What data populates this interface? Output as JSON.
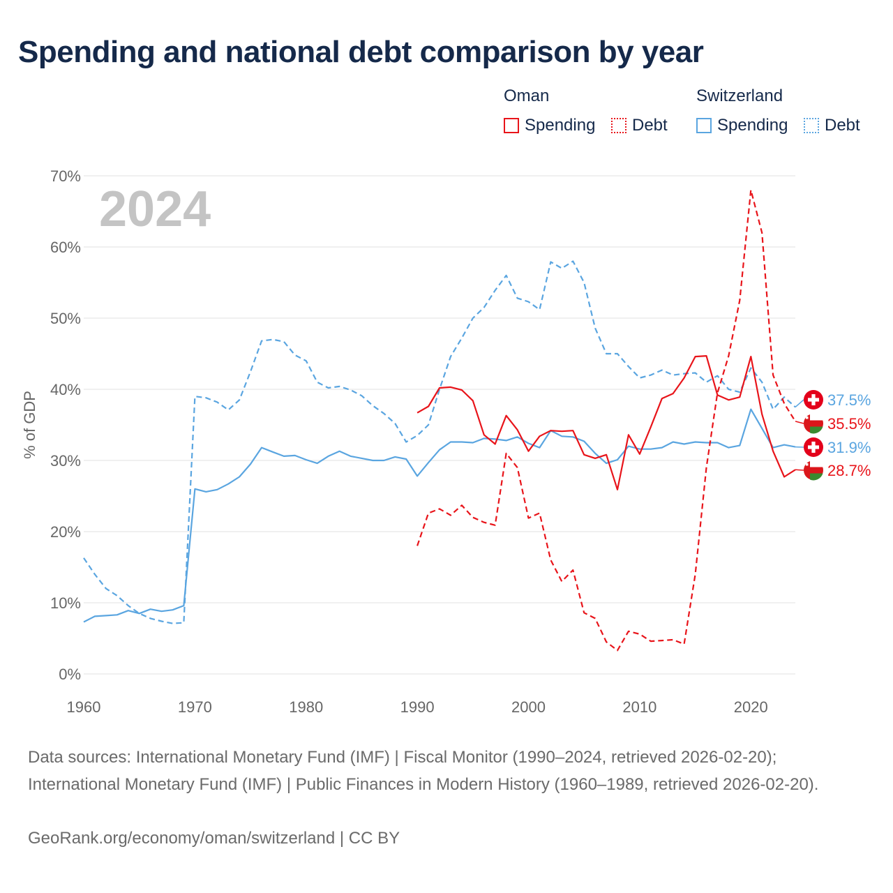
{
  "title": "Spending and national debt comparison by year",
  "legend": {
    "groups": [
      {
        "name": "Oman",
        "spending_label": "Spending",
        "debt_label": "Debt"
      },
      {
        "name": "Switzerland",
        "spending_label": "Spending",
        "debt_label": "Debt"
      }
    ]
  },
  "colors": {
    "oman": "#e8141a",
    "switzerland": "#5aa5e0",
    "year_watermark": "#c4c4c4",
    "axis_text": "#666666",
    "grid": "#e6e6e6"
  },
  "chart_data": {
    "type": "line",
    "title": "Spending and national debt comparison by year",
    "ylabel": "% of GDP",
    "xlabel": "",
    "xlim": [
      1960,
      2024
    ],
    "ylim": [
      0,
      70
    ],
    "x_ticks": [
      1960,
      1970,
      1980,
      1990,
      2000,
      2010,
      2020
    ],
    "y_ticks": [
      0,
      10,
      20,
      30,
      40,
      50,
      60,
      70
    ],
    "y_tick_labels": [
      "0%",
      "10%",
      "20%",
      "30%",
      "40%",
      "50%",
      "60%",
      "70%"
    ],
    "year_watermark": "2024",
    "series": [
      {
        "name": "Switzerland Debt",
        "country": "switzerland",
        "style": "dashed",
        "start": 1960,
        "values": [
          16.3,
          14.0,
          12.0,
          11.0,
          9.6,
          8.5,
          7.8,
          7.4,
          7.1,
          7.2,
          39.0,
          38.8,
          38.2,
          37.1,
          38.5,
          42.5,
          46.8,
          47.0,
          46.7,
          44.8,
          44.0,
          41.0,
          40.2,
          40.4,
          39.9,
          39.1,
          37.7,
          36.6,
          35.2,
          32.6,
          33.5,
          35.0,
          40.0,
          44.6,
          47.2,
          50.0,
          51.5,
          53.9,
          56.0,
          52.8,
          52.3,
          51.2,
          57.9,
          57.0,
          58.0,
          55.0,
          48.6,
          45.0,
          45.0,
          43.2,
          41.6,
          42.0,
          42.7,
          42.0,
          42.2,
          42.3,
          41.0,
          41.9,
          40.0,
          39.6,
          43.0,
          41.0,
          37.2,
          38.9,
          37.5
        ]
      },
      {
        "name": "Switzerland Spending",
        "country": "switzerland",
        "style": "solid",
        "start": 1960,
        "values": [
          7.3,
          8.1,
          8.2,
          8.3,
          8.9,
          8.5,
          9.1,
          8.8,
          9.0,
          9.6,
          26.0,
          25.6,
          25.9,
          26.7,
          27.7,
          29.5,
          31.8,
          31.2,
          30.6,
          30.7,
          30.1,
          29.6,
          30.6,
          31.3,
          30.6,
          30.3,
          30.0,
          30.0,
          30.5,
          30.2,
          27.8,
          29.7,
          31.5,
          32.6,
          32.6,
          32.5,
          33.1,
          33.0,
          32.8,
          33.3,
          32.4,
          31.8,
          34.2,
          33.4,
          33.3,
          32.7,
          31.0,
          29.6,
          30.1,
          32.0,
          31.6,
          31.6,
          31.8,
          32.6,
          32.3,
          32.6,
          32.5,
          32.5,
          31.8,
          32.1,
          37.2,
          34.5,
          31.8,
          32.2,
          31.9
        ]
      },
      {
        "name": "Oman Debt",
        "country": "oman",
        "style": "dashed",
        "start": 1990,
        "values": [
          18.0,
          22.6,
          23.2,
          22.3,
          23.7,
          22.0,
          21.3,
          20.9,
          31.0,
          29.0,
          21.9,
          22.6,
          16.0,
          13.0,
          14.6,
          8.6,
          7.8,
          4.5,
          3.3,
          6.0,
          5.6,
          4.6,
          4.7,
          4.8,
          4.2,
          14.0,
          29.0,
          39.5,
          44.7,
          52.5,
          68.0,
          62.0,
          42.0,
          38.0,
          35.5
        ]
      },
      {
        "name": "Oman Spending",
        "country": "oman",
        "style": "solid",
        "start": 1990,
        "values": [
          36.7,
          37.6,
          40.2,
          40.3,
          39.9,
          38.4,
          33.6,
          32.3,
          36.3,
          34.3,
          31.3,
          33.4,
          34.2,
          34.1,
          34.2,
          30.8,
          30.3,
          30.8,
          25.9,
          33.6,
          30.9,
          34.7,
          38.7,
          39.4,
          41.6,
          44.6,
          44.7,
          39.2,
          38.5,
          38.9,
          44.6,
          36.5,
          31.3,
          27.7,
          28.7
        ]
      }
    ],
    "end_labels": [
      {
        "country": "switzerland",
        "series": "Switzerland Debt",
        "value": 37.5,
        "text": "37.5%"
      },
      {
        "country": "oman",
        "series": "Oman Debt",
        "value": 35.5,
        "text": "35.5%"
      },
      {
        "country": "switzerland",
        "series": "Switzerland Spending",
        "value": 31.9,
        "text": "31.9%"
      },
      {
        "country": "oman",
        "series": "Oman Spending",
        "value": 28.7,
        "text": "28.7%"
      }
    ]
  },
  "footer": {
    "sources": "Data sources: International Monetary Fund (IMF) | Fiscal Monitor (1990–2024, retrieved 2026-02-20); International Monetary Fund (IMF) | Public Finances in Modern History (1960–1989, retrieved 2026-02-20).",
    "credit": "GeoRank.org/economy/oman/switzerland | CC BY"
  }
}
